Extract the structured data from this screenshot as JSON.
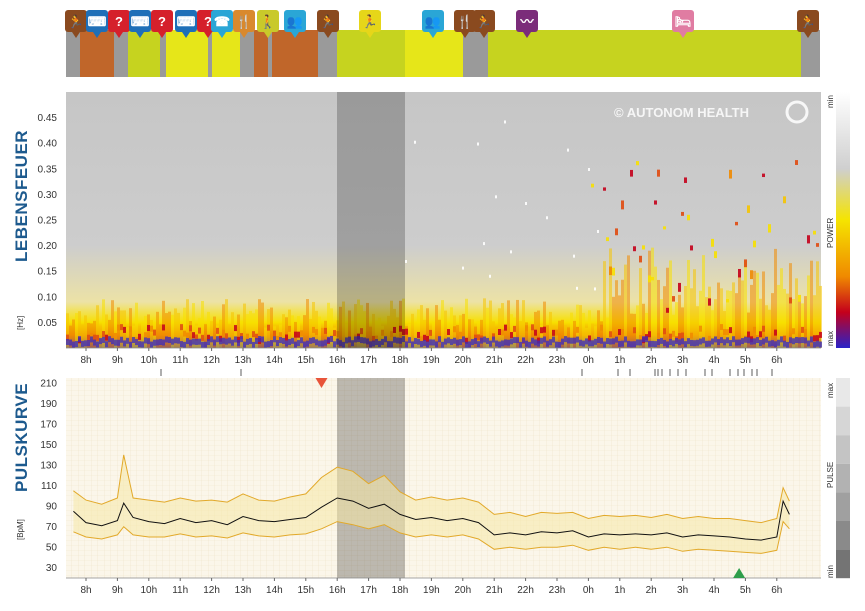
{
  "brand": {
    "text": "© AUTONOM HEALTH"
  },
  "colors": {
    "accent_blue": "#1d5a8e",
    "activity_olive": "#c6d31f",
    "activity_lime": "#e6e619",
    "activity_brown": "#c0662a",
    "activity_orange": "#d9892e",
    "activity_purple": "#7b2c7a",
    "activity_pink": "#e07ca2",
    "pulse_line": "#111111",
    "pulse_band": "#e2b34a",
    "marker_red": "#e8543a",
    "marker_green": "#2e9d4a"
  },
  "activities": {
    "icons": [
      {
        "icon": "running-icon",
        "color": "#8a4a1f",
        "glyph": "🏃"
      },
      {
        "icon": "keyboard-icon",
        "color": "#1e6fb8",
        "glyph": "⌨"
      },
      {
        "icon": "question-icon",
        "color": "#d5202b",
        "glyph": "?"
      },
      {
        "icon": "keyboard-icon",
        "color": "#1e6fb8",
        "glyph": "⌨"
      },
      {
        "icon": "question-icon",
        "color": "#d5202b",
        "glyph": "?"
      },
      {
        "icon": "keyboard-icon",
        "color": "#1e6fb8",
        "glyph": "⌨"
      },
      {
        "icon": "question-icon",
        "color": "#d5202b",
        "glyph": "?"
      },
      {
        "icon": "phone-icon",
        "color": "#2aa6d6",
        "glyph": "☎"
      },
      {
        "icon": "food-icon",
        "color": "#d9892e",
        "glyph": "🍴"
      },
      {
        "icon": "walking-icon",
        "color": "#c9c92a",
        "glyph": "🚶"
      },
      {
        "icon": "meeting-icon",
        "color": "#2aa6d6",
        "glyph": "👥"
      },
      {
        "icon": "running-icon",
        "color": "#8a4a1f",
        "glyph": "🏃"
      },
      {
        "icon": "running-icon",
        "color": "#e6d619",
        "glyph": "🏃"
      },
      {
        "icon": "meeting-icon",
        "color": "#2aa6d6",
        "glyph": "👥"
      },
      {
        "icon": "food-icon",
        "color": "#8a4a1f",
        "glyph": "🍴"
      },
      {
        "icon": "running-icon",
        "color": "#8a4a1f",
        "glyph": "🏃"
      },
      {
        "icon": "relax-icon",
        "color": "#7b2c7a",
        "glyph": "〰"
      },
      {
        "icon": "bed-icon",
        "color": "#e07ca2",
        "glyph": "🛏"
      },
      {
        "icon": "running-icon",
        "color": "#8a4a1f",
        "glyph": "🏃"
      }
    ]
  },
  "lebensfeuer": {
    "title": "LEBENSFEUER",
    "unit": "[Hz]",
    "legend_min": "min",
    "legend_max": "max",
    "legend_label": "POWER"
  },
  "pulskurve": {
    "title": "PULSKURVE",
    "unit": "[BpM]",
    "legend_min": "min",
    "legend_max": "max",
    "legend_label": "PULSE"
  },
  "chart_data": [
    {
      "type": "heatmap",
      "title": "LEBENSFEUER",
      "ylabel": "[Hz]",
      "y_ticks": [
        "0.05",
        "0.10",
        "0.15",
        "0.20",
        "0.25",
        "0.30",
        "0.35",
        "0.40",
        "0.45"
      ],
      "ylim": [
        0,
        0.5
      ],
      "x_ticks": [
        "8h",
        "9h",
        "10h",
        "11h",
        "12h",
        "13h",
        "14h",
        "15h",
        "16h",
        "17h",
        "18h",
        "19h",
        "20h",
        "21h",
        "22h",
        "23h",
        "0h",
        "1h",
        "2h",
        "3h",
        "4h",
        "5h",
        "6h"
      ],
      "highlight_range": [
        "16h",
        "18h"
      ],
      "colorbar": [
        "min",
        "POWER",
        "max"
      ]
    },
    {
      "type": "line",
      "title": "PULSKURVE",
      "ylabel": "[BpM]",
      "y_ticks": [
        "30",
        "50",
        "70",
        "90",
        "110",
        "130",
        "150",
        "170",
        "190",
        "210"
      ],
      "ylim": [
        20,
        215
      ],
      "x_ticks": [
        "8h",
        "9h",
        "10h",
        "11h",
        "12h",
        "13h",
        "14h",
        "15h",
        "16h",
        "17h",
        "18h",
        "19h",
        "20h",
        "21h",
        "22h",
        "23h",
        "0h",
        "1h",
        "2h",
        "3h",
        "4h",
        "5h",
        "6h"
      ],
      "highlight_range": [
        "16h",
        "18h"
      ],
      "series": [
        {
          "name": "",
          "hours": [
            7.6,
            8,
            8.5,
            9,
            9.2,
            9.5,
            10,
            10.5,
            11,
            11.5,
            12,
            12.5,
            13,
            13.5,
            14,
            14.5,
            15,
            15.5,
            16,
            16.5,
            17,
            17.5,
            18,
            18.5,
            19,
            19.5,
            20,
            20.5,
            21,
            21.5,
            22,
            22.5,
            23,
            23.5,
            24,
            24.5,
            25,
            25.5,
            26,
            26.5,
            27,
            27.5,
            28,
            28.5,
            29,
            29.5,
            30,
            30.2,
            30.4
          ],
          "values": [
            85,
            74,
            71,
            76,
            93,
            79,
            75,
            73,
            78,
            74,
            76,
            72,
            80,
            76,
            75,
            77,
            79,
            89,
            98,
            95,
            88,
            92,
            82,
            77,
            79,
            76,
            78,
            74,
            62,
            64,
            62,
            65,
            64,
            66,
            60,
            63,
            62,
            63,
            62,
            64,
            60,
            62,
            61,
            60,
            58,
            57,
            60,
            95,
            82
          ]
        }
      ],
      "band_upper": [
        105,
        96,
        92,
        98,
        140,
        98,
        96,
        94,
        98,
        95,
        96,
        94,
        102,
        96,
        95,
        99,
        102,
        118,
        128,
        124,
        112,
        120,
        104,
        96,
        99,
        96,
        98,
        94,
        82,
        84,
        80,
        84,
        83,
        84,
        78,
        81,
        80,
        81,
        79,
        82,
        78,
        80,
        78,
        78,
        76,
        74,
        78,
        108,
        95
      ],
      "band_lower": [
        65,
        60,
        58,
        62,
        70,
        62,
        60,
        60,
        63,
        60,
        61,
        59,
        64,
        61,
        60,
        62,
        63,
        68,
        75,
        72,
        68,
        72,
        64,
        60,
        62,
        60,
        62,
        58,
        48,
        50,
        48,
        50,
        50,
        52,
        47,
        50,
        48,
        50,
        48,
        50,
        46,
        48,
        47,
        46,
        45,
        44,
        47,
        75,
        68
      ],
      "markers": [
        {
          "label": "max",
          "hour": 15.5,
          "color": "#e8543a"
        },
        {
          "label": "min",
          "hour": 28.8,
          "color": "#2e9d4a"
        }
      ],
      "colorbar": [
        "min",
        "PULSE",
        "max"
      ]
    }
  ]
}
